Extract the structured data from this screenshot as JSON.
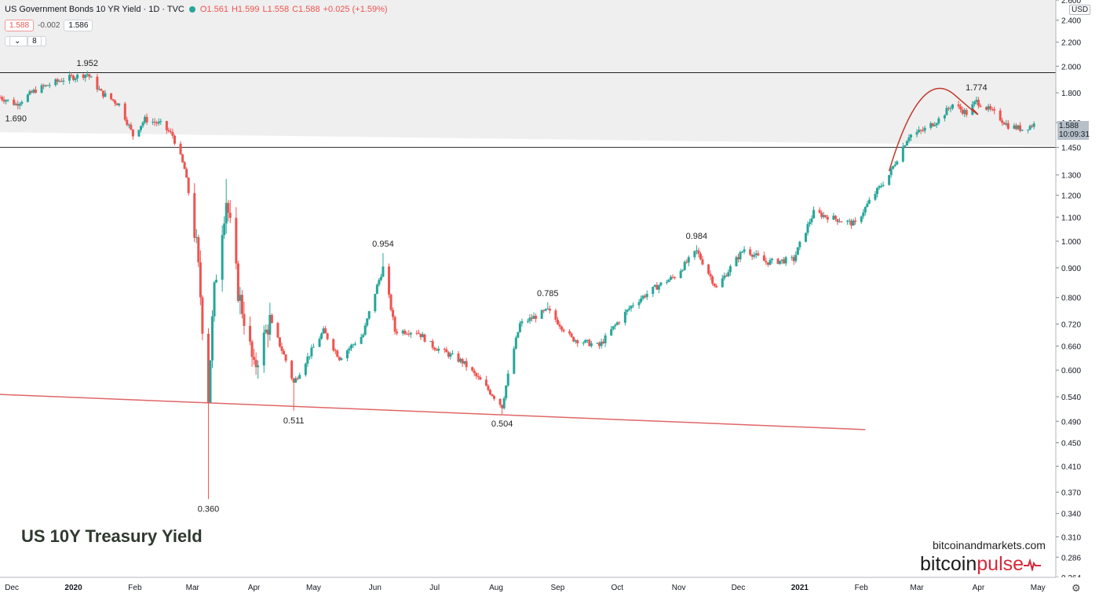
{
  "header": {
    "title": "US Government Bonds 10 YR Yield · 1D · TVC",
    "ohlc": {
      "o": "O1.561",
      "h": "H1.599",
      "l": "L1.558",
      "c": "C1.588",
      "chg": "+0.025 (+1.59%)"
    },
    "sell_price": "1.588",
    "spread": "-0.002",
    "buy_price": "1.586",
    "indicator_count": "8"
  },
  "price_scale": {
    "currency": "USD",
    "last_price": "1.588",
    "countdown": "10:09:31"
  },
  "annotations": {
    "big_title": "US 10Y Treasury Yield",
    "website": "bitcoinandmarkets.com",
    "brand_a": "bitcoin",
    "brand_b": "pulse",
    "settings_icon": "gear-icon"
  },
  "colors": {
    "up": "#26a69a",
    "down": "#ef5350",
    "zone": "#efefef",
    "trendline": "#e06666"
  },
  "chart_data": {
    "type": "candlestick",
    "scale": "log",
    "ylim": [
      0.264,
      2.6
    ],
    "y_ticks": [
      "2.600",
      "2.400",
      "2.200",
      "2.000",
      "1.800",
      "1.600",
      "1.450",
      "1.300",
      "1.200",
      "1.100",
      "1.000",
      "0.900",
      "0.800",
      "0.720",
      "0.660",
      "0.600",
      "0.540",
      "0.490",
      "0.450",
      "0.410",
      "0.370",
      "0.340",
      "0.310",
      "0.286",
      "0.264"
    ],
    "x_ticks": [
      "Dec",
      "2020",
      "Feb",
      "Mar",
      "Apr",
      "May",
      "Jun",
      "Jul",
      "Aug",
      "Sep",
      "Oct",
      "Nov",
      "Dec",
      "2021",
      "Feb",
      "Mar",
      "Apr",
      "May"
    ],
    "x_range": [
      "2019-11-25",
      "2021-05-10"
    ],
    "levels": [
      1.95,
      1.45
    ],
    "support_line": [
      [
        "2019-11-25",
        0.545
      ],
      [
        "2021-02-03",
        0.474
      ]
    ],
    "arc": [
      [
        "2021-02-15",
        1.32
      ],
      [
        "2021-03-20",
        1.774
      ],
      [
        "2021-03-29",
        1.69
      ]
    ],
    "labels": [
      {
        "text": "1.952",
        "date": "2020-01-08",
        "value": 1.952,
        "pos": "above"
      },
      {
        "text": "1.690",
        "date": "2019-12-03",
        "value": 1.69,
        "pos": "below"
      },
      {
        "text": "0.360",
        "date": "2020-03-09",
        "value": 0.36,
        "pos": "below"
      },
      {
        "text": "0.511",
        "date": "2020-04-21",
        "value": 0.511,
        "pos": "below"
      },
      {
        "text": "0.954",
        "date": "2020-06-05",
        "value": 0.954,
        "pos": "above"
      },
      {
        "text": "0.504",
        "date": "2020-08-04",
        "value": 0.504,
        "pos": "below"
      },
      {
        "text": "0.785",
        "date": "2020-08-27",
        "value": 0.785,
        "pos": "above"
      },
      {
        "text": "0.984",
        "date": "2020-11-10",
        "value": 0.984,
        "pos": "above"
      },
      {
        "text": "1.774",
        "date": "2021-03-31",
        "value": 1.774,
        "pos": "above"
      }
    ],
    "anchors": [
      [
        "2019-11-25",
        1.77
      ],
      [
        "2019-12-03",
        1.72
      ],
      [
        "2019-12-13",
        1.82
      ],
      [
        "2019-12-27",
        1.9
      ],
      [
        "2020-01-08",
        1.94
      ],
      [
        "2020-01-15",
        1.8
      ],
      [
        "2020-01-24",
        1.72
      ],
      [
        "2020-01-31",
        1.52
      ],
      [
        "2020-02-06",
        1.62
      ],
      [
        "2020-02-14",
        1.59
      ],
      [
        "2020-02-20",
        1.52
      ],
      [
        "2020-02-26",
        1.33
      ],
      [
        "2020-03-03",
        0.98
      ],
      [
        "2020-03-06",
        0.72
      ],
      [
        "2020-03-09",
        0.54
      ],
      [
        "2020-03-12",
        0.82
      ],
      [
        "2020-03-18",
        1.18
      ],
      [
        "2020-03-24",
        0.82
      ],
      [
        "2020-04-01",
        0.6
      ],
      [
        "2020-04-09",
        0.73
      ],
      [
        "2020-04-21",
        0.57
      ],
      [
        "2020-05-06",
        0.7
      ],
      [
        "2020-05-14",
        0.63
      ],
      [
        "2020-05-26",
        0.69
      ],
      [
        "2020-06-05",
        0.9
      ],
      [
        "2020-06-11",
        0.7
      ],
      [
        "2020-06-22",
        0.7
      ],
      [
        "2020-06-30",
        0.66
      ],
      [
        "2020-07-15",
        0.62
      ],
      [
        "2020-08-04",
        0.52
      ],
      [
        "2020-08-13",
        0.72
      ],
      [
        "2020-08-27",
        0.76
      ],
      [
        "2020-09-08",
        0.68
      ],
      [
        "2020-09-22",
        0.66
      ],
      [
        "2020-10-09",
        0.78
      ],
      [
        "2020-10-22",
        0.84
      ],
      [
        "2020-10-30",
        0.87
      ],
      [
        "2020-11-10",
        0.96
      ],
      [
        "2020-11-20",
        0.83
      ],
      [
        "2020-12-04",
        0.97
      ],
      [
        "2020-12-15",
        0.92
      ],
      [
        "2020-12-29",
        0.93
      ],
      [
        "2021-01-08",
        1.12
      ],
      [
        "2021-01-20",
        1.09
      ],
      [
        "2021-01-29",
        1.07
      ],
      [
        "2021-02-05",
        1.17
      ],
      [
        "2021-02-15",
        1.3
      ],
      [
        "2021-02-25",
        1.52
      ],
      [
        "2021-03-04",
        1.55
      ],
      [
        "2021-03-12",
        1.62
      ],
      [
        "2021-03-19",
        1.72
      ],
      [
        "2021-03-26",
        1.66
      ],
      [
        "2021-03-31",
        1.74
      ],
      [
        "2021-04-09",
        1.66
      ],
      [
        "2021-04-16",
        1.58
      ],
      [
        "2021-04-23",
        1.56
      ],
      [
        "2021-04-29",
        1.588
      ]
    ]
  }
}
